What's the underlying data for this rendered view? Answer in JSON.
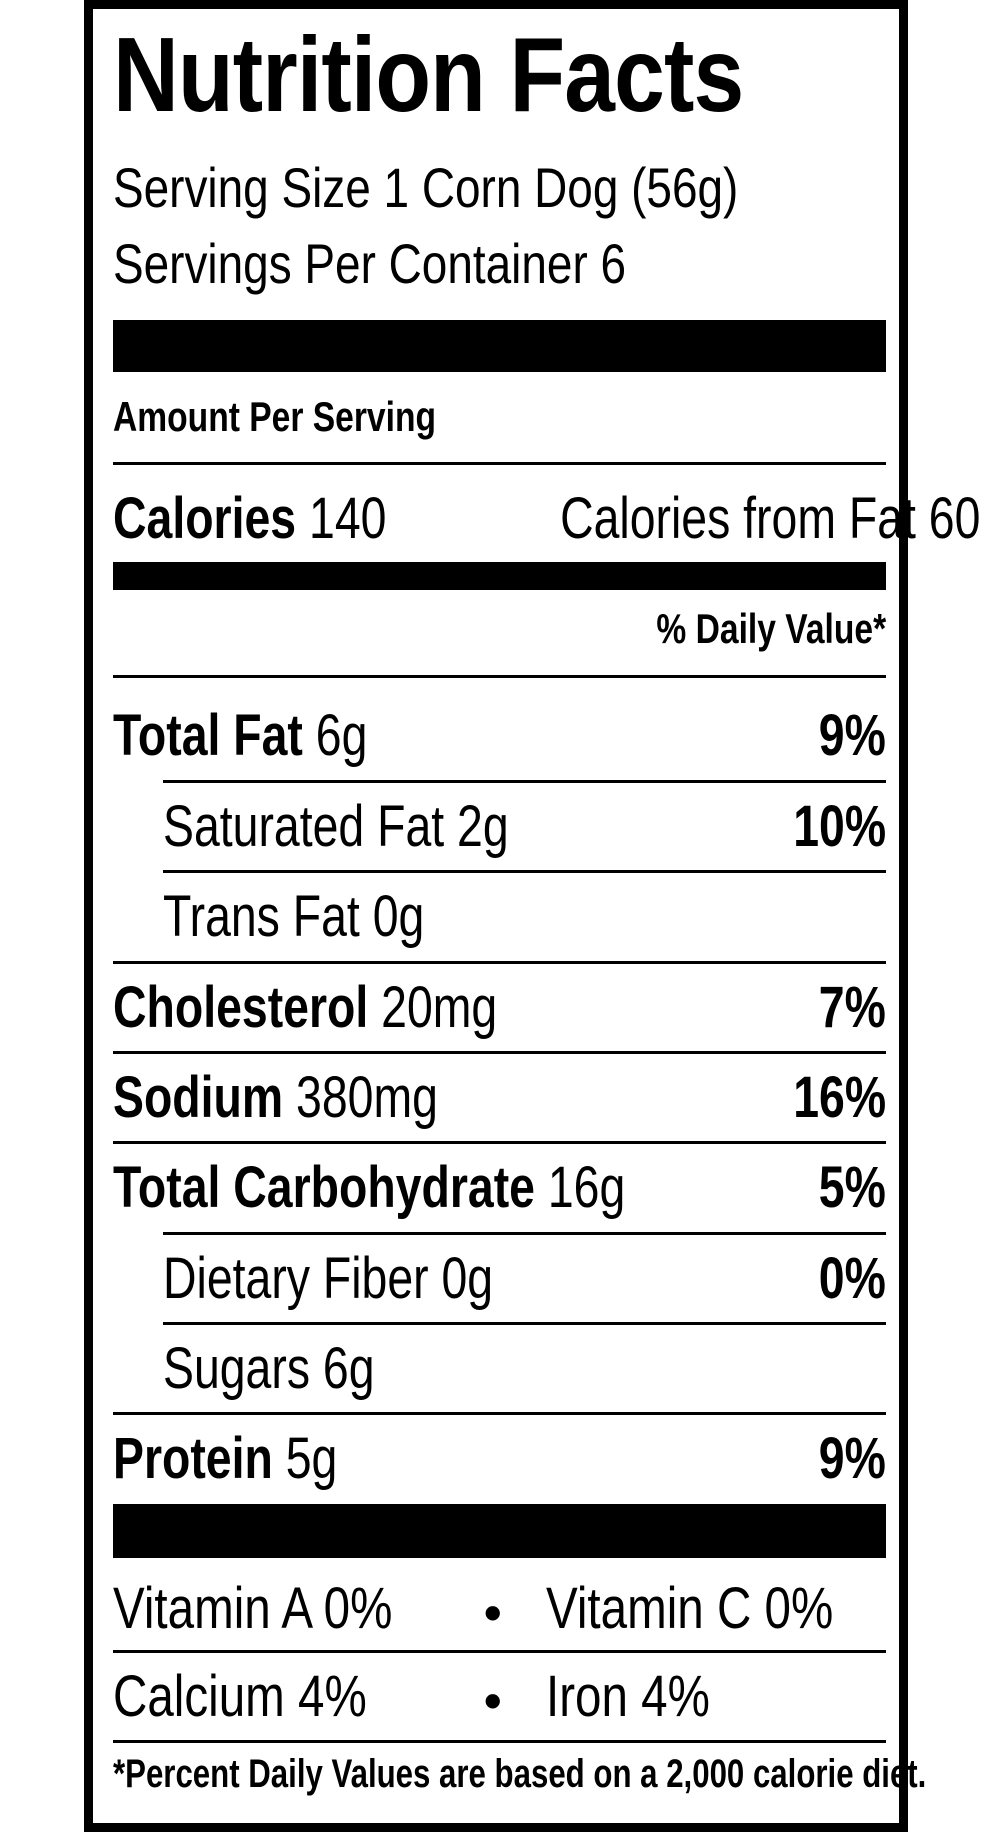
{
  "label": {
    "title": "Nutrition Facts",
    "serving_size": "Serving Size 1 Corn Dog (56g)",
    "servings_per_container": "Servings Per Container 6",
    "amount_per_serving": "Amount Per Serving",
    "calories_label": "Calories",
    "calories_value": "140",
    "calories_from_fat": "Calories from Fat 60",
    "daily_value_header": "% Daily Value*",
    "nutrients": [
      {
        "name": "Total Fat",
        "amount": "6g",
        "dv": "9%"
      },
      {
        "name": "Saturated Fat",
        "amount": "2g",
        "dv": "10%"
      },
      {
        "name": "Trans Fat",
        "amount": "0g",
        "dv": ""
      },
      {
        "name": "Cholesterol",
        "amount": "20mg",
        "dv": "7%"
      },
      {
        "name": "Sodium",
        "amount": "380mg",
        "dv": "16%"
      },
      {
        "name": "Total Carbohydrate",
        "amount": "16g",
        "dv": "5%"
      },
      {
        "name": "Dietary Fiber",
        "amount": "0g",
        "dv": "0%"
      },
      {
        "name": "Sugars",
        "amount": "6g",
        "dv": ""
      },
      {
        "name": "Protein",
        "amount": "5g",
        "dv": "9%"
      }
    ],
    "vitamins": {
      "vitamin_a": "Vitamin A 0%",
      "vitamin_c": "Vitamin C 0%",
      "calcium": "Calcium 4%",
      "iron": "Iron 4%",
      "bullet": "•"
    },
    "footnote": "*Percent Daily Values are based on a 2,000 calorie diet."
  }
}
